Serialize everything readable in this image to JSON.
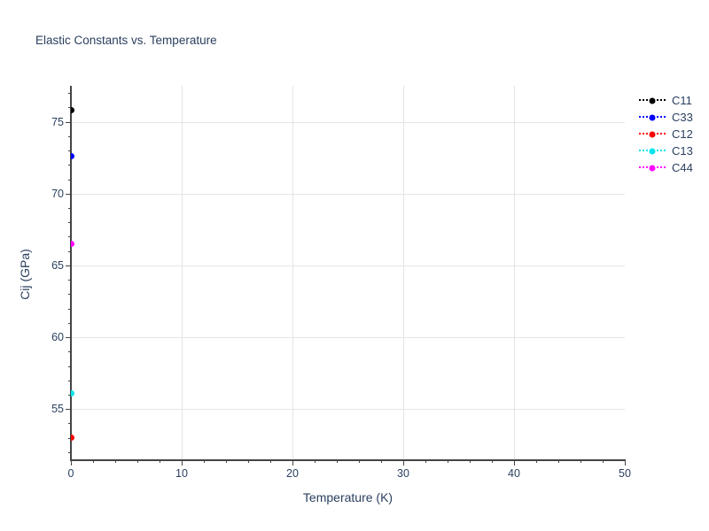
{
  "figure": {
    "background": "#ffffff",
    "text_color": "#2a3f5f",
    "axis_color": "#444444",
    "grid_color": "#e5e5e5"
  },
  "chart_data": {
    "type": "scatter",
    "mode": "markers",
    "title": "Elastic Constants vs. Temperature",
    "xlabel": "Temperature (K)",
    "ylabel": "Cij (GPa)",
    "xlim": [
      0,
      50
    ],
    "ylim": [
      51.5,
      77.5
    ],
    "xticks": [
      0,
      10,
      20,
      30,
      40,
      50
    ],
    "yticks": [
      55,
      60,
      65,
      70,
      75
    ],
    "x_minor_step": 2,
    "y_minor_step": 1,
    "grid": true,
    "marker_size": 7,
    "legend_position": "outside-top-right",
    "legend_sample_style": "dotted-line-with-center-dot",
    "series": [
      {
        "name": "C11",
        "color": "#000000",
        "x": [
          0
        ],
        "y": [
          75.8
        ]
      },
      {
        "name": "C33",
        "color": "#0000ff",
        "x": [
          0
        ],
        "y": [
          72.6
        ]
      },
      {
        "name": "C12",
        "color": "#ff0000",
        "x": [
          0
        ],
        "y": [
          53.0
        ]
      },
      {
        "name": "C13",
        "color": "#00e5ee",
        "x": [
          0
        ],
        "y": [
          56.1
        ]
      },
      {
        "name": "C44",
        "color": "#ff00ff",
        "x": [
          0
        ],
        "y": [
          66.5
        ]
      }
    ]
  }
}
